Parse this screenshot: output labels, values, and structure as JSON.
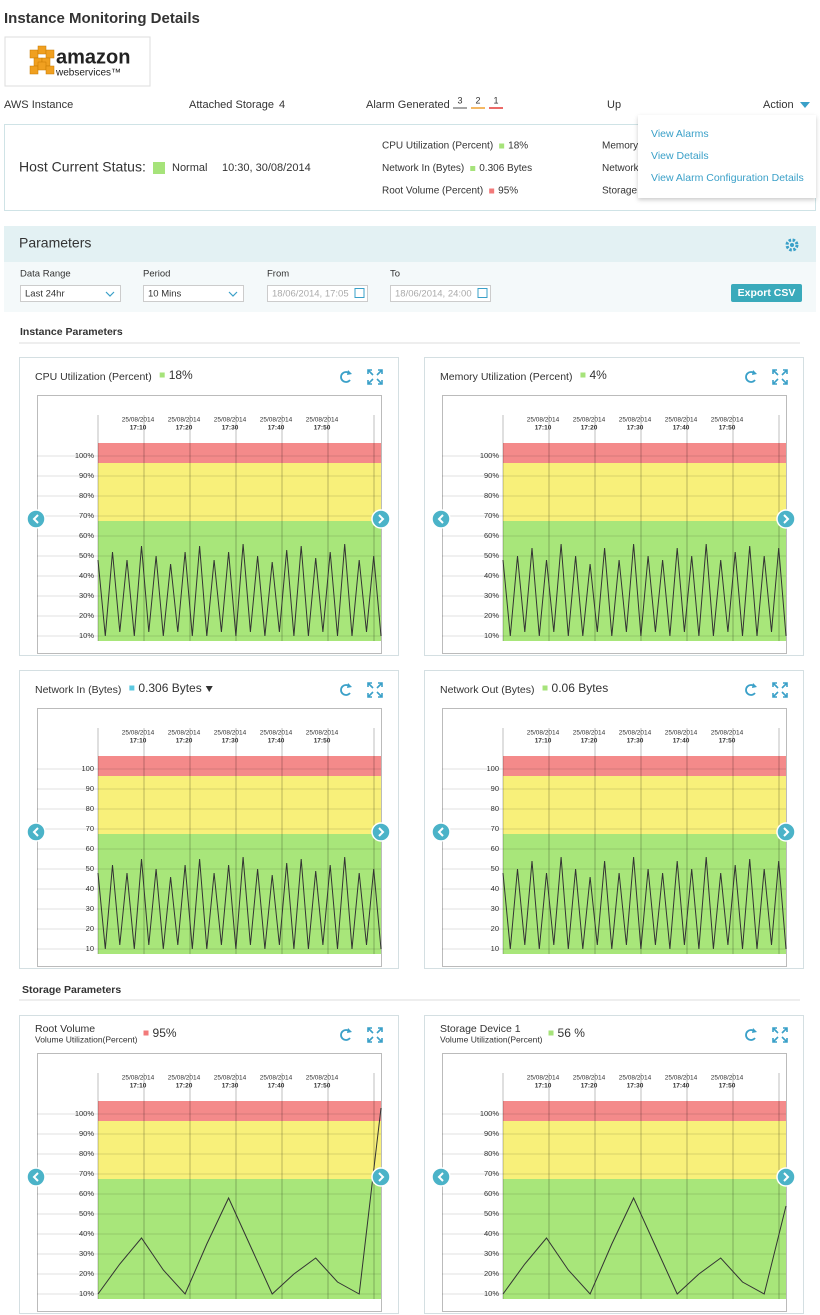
{
  "header": {
    "title": "Instance Monitoring Details",
    "logo": {
      "brand": "amazon",
      "sub": "webservices™"
    }
  },
  "summary": {
    "instance": "AWS Instance",
    "storage_label": "Attached Storage",
    "storage_count": 4,
    "alarm_label": "Alarm Generated",
    "alarms": [
      {
        "count": 3,
        "color": "#888888"
      },
      {
        "count": 2,
        "color": "#f0a030"
      },
      {
        "count": 1,
        "color": "#e53935"
      }
    ],
    "state": "Up",
    "action": "Action"
  },
  "menu": [
    "View Alarms",
    "View Details",
    "View Alarm Configuration Details"
  ],
  "status": {
    "label": "Host Current Status:",
    "state": "Normal",
    "color": "#a6e37a",
    "time": "10:30, 30/08/2014",
    "metrics": [
      {
        "name": "CPU Utilization (Percent)",
        "color": "#a6e37a",
        "value": "18%"
      },
      {
        "name": "Network In (Bytes)",
        "color": "#a6e37a",
        "value": "0.306 Bytes"
      },
      {
        "name": "Root Volume (Percent)",
        "color": "#f27a7a",
        "value": "95%"
      }
    ],
    "more": [
      "Memory",
      "Network",
      "Storage"
    ]
  },
  "parameters": {
    "title": "Parameters",
    "fields": [
      {
        "label": "Data Range",
        "value": "Last 24hr",
        "kind": "select"
      },
      {
        "label": "Period",
        "value": "10 Mins",
        "kind": "select"
      },
      {
        "label": "From",
        "value": "18/06/2014, 17:05",
        "kind": "date"
      },
      {
        "label": "To",
        "value": "18/06/2014, 24:00",
        "kind": "date"
      }
    ],
    "export": "Export CSV"
  },
  "sections": [
    "Instance Parameters",
    "Storage Parameters"
  ],
  "axes": {
    "xticks": [
      {
        "date": "25/08/2014",
        "time": "17:10"
      },
      {
        "date": "25/08/2014",
        "time": "17:20"
      },
      {
        "date": "25/08/2014",
        "time": "17:30"
      },
      {
        "date": "25/08/2014",
        "time": "17:40"
      },
      {
        "date": "25/08/2014",
        "time": "17:50"
      }
    ],
    "percent": [
      {
        "value": 100,
        "label": "100%"
      },
      {
        "value": 90,
        "label": "90%"
      },
      {
        "value": 80,
        "label": "80%"
      },
      {
        "value": 70,
        "label": "70%"
      },
      {
        "value": 60,
        "label": "60%"
      },
      {
        "value": 50,
        "label": "50%"
      },
      {
        "value": 40,
        "label": "40%"
      },
      {
        "value": 30,
        "label": "30%"
      },
      {
        "value": 20,
        "label": "20%"
      },
      {
        "value": 10,
        "label": "10%"
      }
    ],
    "plain": [
      100,
      90,
      80,
      70,
      60,
      50,
      40,
      30,
      20,
      10
    ],
    "ylim": [
      7.5,
      130.5
    ],
    "bands": [
      {
        "from": 7.5,
        "to": 67.5,
        "color": "#a8e67a"
      },
      {
        "from": 67.5,
        "to": 96.5,
        "color": "#f8f07a"
      },
      {
        "from": 96.5,
        "to": 106.5,
        "color": "#f48a8a"
      }
    ]
  },
  "charts": [
    {
      "title": "CPU Utilization (Percent)",
      "value": "18%",
      "value_color": "#a6e37a",
      "axis": "percent",
      "values": [
        48,
        10,
        52,
        12,
        48,
        10,
        55,
        12,
        50,
        10,
        46,
        12,
        52,
        10,
        55,
        10,
        48,
        12,
        52,
        10,
        56,
        12,
        50,
        10,
        47,
        12,
        53,
        10,
        55,
        10,
        49,
        12,
        52,
        10,
        56,
        10,
        48,
        12,
        50,
        10
      ]
    },
    {
      "title": "Memory Utilization (Percent)",
      "value": "4%",
      "value_color": "#a6e37a",
      "axis": "percent",
      "values": [
        48,
        10,
        50,
        12,
        54,
        10,
        48,
        12,
        56,
        10,
        50,
        10,
        46,
        12,
        54,
        10,
        48,
        12,
        56,
        10,
        50,
        12,
        48,
        10,
        54,
        12,
        50,
        10,
        56,
        10,
        48,
        12,
        52,
        10,
        55,
        10,
        50,
        12,
        54,
        10
      ]
    },
    {
      "title": "Network In (Bytes)",
      "value": "0.306 Bytes",
      "value_color": "#5bc8e0",
      "axis": "plain",
      "dropdown": true,
      "values": [
        48,
        10,
        52,
        12,
        48,
        10,
        55,
        12,
        50,
        10,
        46,
        12,
        52,
        10,
        55,
        10,
        48,
        12,
        52,
        10,
        56,
        12,
        50,
        10,
        47,
        12,
        53,
        10,
        55,
        10,
        49,
        12,
        52,
        10,
        56,
        10,
        48,
        12,
        50,
        10
      ]
    },
    {
      "title": "Network Out (Bytes)",
      "value": "0.06 Bytes",
      "value_color": "#a6e37a",
      "axis": "plain",
      "dropdown": true,
      "values": [
        48,
        10,
        50,
        12,
        54,
        10,
        48,
        12,
        56,
        10,
        50,
        10,
        46,
        12,
        54,
        10,
        48,
        12,
        56,
        10,
        50,
        12,
        48,
        10,
        54,
        12,
        50,
        10,
        56,
        10,
        48,
        12,
        52,
        10,
        55,
        10,
        50,
        12,
        54,
        10
      ]
    },
    {
      "title": "Root Volume",
      "subtitle": "Volume Utilization(Percent)",
      "value": "95%",
      "value_color": "#f27a7a",
      "axis": "percent",
      "values": [
        10,
        25,
        38,
        22,
        10,
        35,
        58,
        34,
        10,
        20,
        28,
        16,
        10,
        103
      ]
    },
    {
      "title": "Storage Device 1",
      "subtitle": "Volume Utilization(Percent)",
      "value": "56 %",
      "value_color": "#a6e37a",
      "axis": "percent",
      "values": [
        10,
        25,
        38,
        22,
        10,
        35,
        58,
        34,
        10,
        20,
        28,
        16,
        10,
        54
      ]
    }
  ]
}
